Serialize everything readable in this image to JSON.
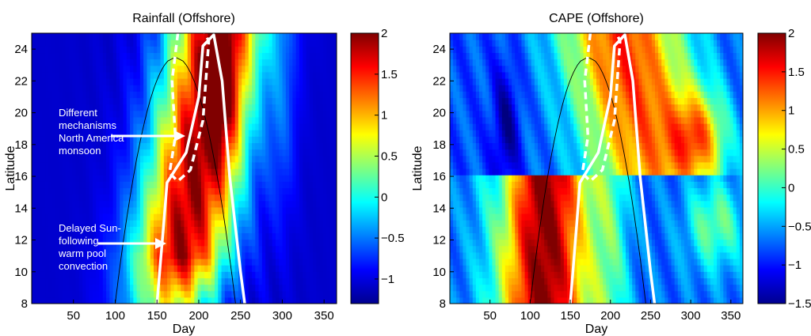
{
  "chart_data": [
    {
      "type": "heatmap",
      "title": "Rainfall (Offshore)",
      "xlabel": "Day",
      "ylabel": "Latitude",
      "xlim": [
        0,
        365
      ],
      "ylim": [
        8,
        25
      ],
      "xticks": [
        "50",
        "100",
        "150",
        "200",
        "250",
        "300",
        "350"
      ],
      "yticks": [
        "8",
        "10",
        "12",
        "14",
        "16",
        "18",
        "20",
        "22",
        "24"
      ],
      "colorbar": {
        "range": [
          -1.3,
          2
        ],
        "ticks": [
          "2",
          "1.5",
          "1",
          "0.5",
          "0",
          "−0.5",
          "−1"
        ],
        "tick_values": [
          2,
          1.5,
          1,
          0.5,
          0,
          -0.5,
          -1
        ]
      },
      "annotations": [
        {
          "lines": [
            "Different",
            "mechanisms",
            "North America",
            "monsoon"
          ]
        },
        {
          "lines": [
            "Delayed Sun-",
            "following",
            "warm pool",
            "convection"
          ]
        }
      ]
    },
    {
      "type": "heatmap",
      "title": "CAPE (Offshore)",
      "xlabel": "Day",
      "ylabel": "Latitude",
      "xlim": [
        0,
        365
      ],
      "ylim": [
        8,
        25
      ],
      "xticks": [
        "50",
        "100",
        "150",
        "200",
        "250",
        "300",
        "350"
      ],
      "yticks": [
        "8",
        "10",
        "12",
        "14",
        "16",
        "18",
        "20",
        "22",
        "24"
      ],
      "colorbar": {
        "range": [
          -1.5,
          2
        ],
        "ticks": [
          "2",
          "1.5",
          "1",
          "0.5",
          "0",
          "−0.5",
          "−1",
          "−1.5"
        ],
        "tick_values": [
          2,
          1.5,
          1,
          0.5,
          0,
          -0.5,
          -1,
          -1.5
        ]
      }
    }
  ]
}
